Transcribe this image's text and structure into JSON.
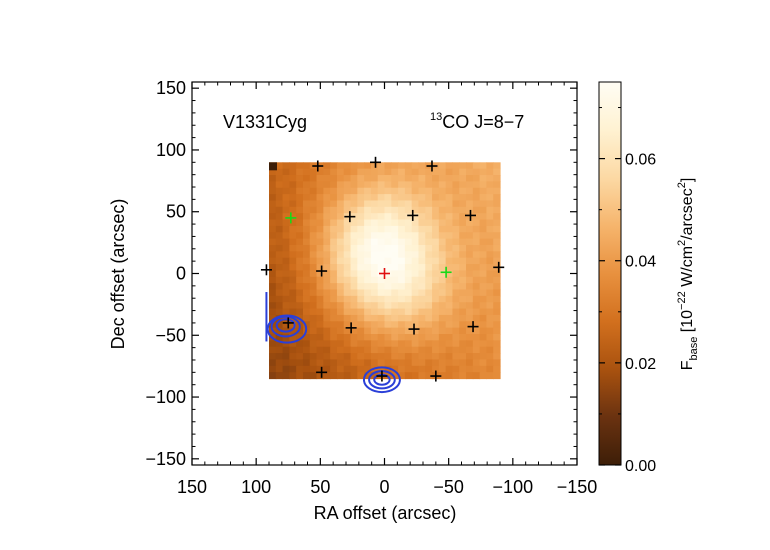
{
  "chart_data": {
    "type": "heatmap",
    "object_label": "V1331Cyg",
    "line_label": {
      "superscript": "13",
      "text": "CO J=8−7"
    },
    "xlabel": "RA offset (arcsec)",
    "ylabel": "Dec offset (arcsec)",
    "xlim": [
      150,
      -150
    ],
    "ylim": [
      -155,
      155
    ],
    "x_ticks": [
      "150",
      "100",
      "50",
      "0",
      "−50",
      "−100",
      "−150"
    ],
    "x_tick_values": [
      150,
      100,
      50,
      0,
      -50,
      -100,
      -150
    ],
    "y_ticks": [
      "150",
      "100",
      "50",
      "0",
      "−50",
      "−100",
      "−150"
    ],
    "y_tick_values": [
      150,
      100,
      50,
      0,
      -50,
      -100,
      -150
    ],
    "image_extent": {
      "x": [
        90,
        -90
      ],
      "y": [
        -85,
        90
      ]
    },
    "colorbar": {
      "label_prefix": "F",
      "label_sub": "base",
      "label_unit_parts": [
        {
          "text": " [10",
          "sup": false
        },
        {
          "text": "−22",
          "sup": true
        },
        {
          "text": " W/cm",
          "sup": false
        },
        {
          "text": "2",
          "sup": true
        },
        {
          "text": "/arcsec",
          "sup": false
        },
        {
          "text": "2",
          "sup": true
        },
        {
          "text": "]",
          "sup": false
        }
      ],
      "range": [
        0.0,
        0.075
      ],
      "tick_labels": [
        "0.00",
        "0.02",
        "0.04",
        "0.06"
      ],
      "tick_values": [
        0.0,
        0.02,
        0.04,
        0.06
      ]
    },
    "colormap": [
      "#3d1e08",
      "#6a3210",
      "#a9520f",
      "#d2701e",
      "#e8913f",
      "#f6b56d",
      "#fcd9a4",
      "#fff2d2",
      "#fffdf4"
    ],
    "peak": {
      "x": 5,
      "y": 15,
      "value": 0.073
    },
    "emission_model": {
      "background": 0.03,
      "components": [
        {
          "x": 5,
          "y": 15,
          "sx": 32,
          "sy": 38,
          "amp": 0.043
        },
        {
          "x": -25,
          "y": -20,
          "sx": 28,
          "sy": 30,
          "amp": 0.008
        }
      ],
      "tilt_x": -0.00012,
      "tilt_y": 6e-05
    },
    "pixel_positions": [
      {
        "x": 52,
        "y": 87,
        "color": "black"
      },
      {
        "x": 7,
        "y": 90,
        "color": "black"
      },
      {
        "x": -37,
        "y": 87,
        "color": "black"
      },
      {
        "x": 73,
        "y": 45,
        "color": "green"
      },
      {
        "x": 27,
        "y": 46,
        "color": "black"
      },
      {
        "x": -22,
        "y": 47,
        "color": "black"
      },
      {
        "x": -67,
        "y": 47,
        "color": "black"
      },
      {
        "x": 92,
        "y": 3,
        "color": "black"
      },
      {
        "x": 49,
        "y": 2,
        "color": "black"
      },
      {
        "x": 0,
        "y": 0,
        "color": "red"
      },
      {
        "x": -48,
        "y": 1,
        "color": "green"
      },
      {
        "x": -89,
        "y": 5,
        "color": "black"
      },
      {
        "x": 75,
        "y": -40,
        "color": "black"
      },
      {
        "x": 26,
        "y": -44,
        "color": "black"
      },
      {
        "x": -23,
        "y": -45,
        "color": "black"
      },
      {
        "x": -69,
        "y": -43,
        "color": "black"
      },
      {
        "x": 49,
        "y": -80,
        "color": "black"
      },
      {
        "x": 2,
        "y": -83,
        "color": "black"
      },
      {
        "x": -40,
        "y": -83,
        "color": "black"
      }
    ],
    "contours": [
      {
        "cx": 77,
        "cy": -42,
        "rx": 7,
        "ry": 5
      },
      {
        "cx": 77,
        "cy": -43,
        "rx": 11,
        "ry": 8
      },
      {
        "cx": 76,
        "cy": -45,
        "rx": 15,
        "ry": 11
      },
      {
        "cx": 2,
        "cy": -86,
        "rx": 6,
        "ry": 4
      },
      {
        "cx": 2,
        "cy": -86,
        "rx": 10,
        "ry": 7
      },
      {
        "cx": 2,
        "cy": -86,
        "rx": 14,
        "ry": 10
      }
    ],
    "contour_edge": {
      "x": 92,
      "y1": -15,
      "y2": -55
    },
    "contour_color": "#2a3fd8",
    "marker_colors": {
      "black": "#000000",
      "red": "#e01010",
      "green": "#18d818"
    },
    "corner_pixel_color": "#3d1e08"
  }
}
